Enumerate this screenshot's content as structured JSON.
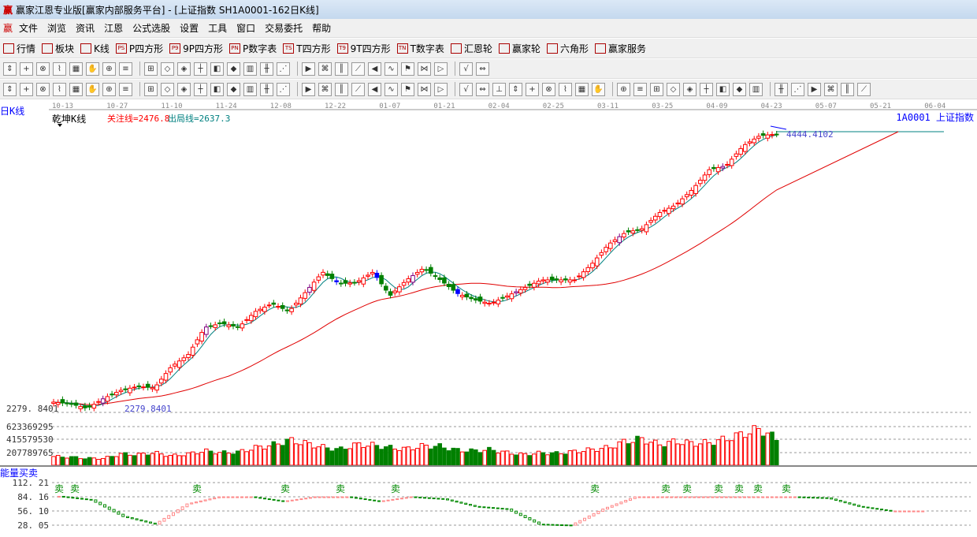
{
  "window": {
    "title": "赢家江恩专业版[赢家内部服务平台] - [上证指数  SH1A0001-162日K线]",
    "logo": "赢"
  },
  "menu": [
    "文件",
    "浏览",
    "资讯",
    "江恩",
    "公式选股",
    "设置",
    "工具",
    "窗口",
    "交易委托",
    "帮助"
  ],
  "toolbar1": [
    {
      "icon": "grid-icon",
      "label": "行情"
    },
    {
      "icon": "blocks-icon",
      "label": "板块"
    },
    {
      "icon": "kline-icon",
      "label": "K线"
    },
    {
      "icon": "PS",
      "label": "P四方形"
    },
    {
      "icon": "P9",
      "label": "9P四方形"
    },
    {
      "icon": "PN",
      "label": "P数字表"
    },
    {
      "icon": "TS",
      "label": "T四方形"
    },
    {
      "icon": "T9",
      "label": "9T四方形"
    },
    {
      "icon": "TN",
      "label": "T数字表"
    },
    {
      "icon": "wheel-icon",
      "label": "汇恩轮"
    },
    {
      "icon": "wheel-icon",
      "label": "赢家轮"
    },
    {
      "icon": "hexagon-icon",
      "label": "六角形"
    },
    {
      "icon": "dollar-icon",
      "label": "赢家服务"
    }
  ],
  "toolbar2_count": 28,
  "toolbar3_count": 50,
  "panel": {
    "period": "日K线",
    "indicator": "乾坤K线",
    "focus_line": "关注线=2476.8",
    "exit_line": "出局线=2637.3",
    "symbol": "1A0001  上证指数",
    "high_label": "4444.4102",
    "low_label": "2279.8401",
    "low_axis": "2279. 8401",
    "volume_axis": [
      "623369295",
      "415579530",
      "207789765"
    ],
    "energy_title": "能量买卖",
    "energy_axis": [
      "112. 21",
      "84. 16",
      "56. 10",
      "28. 05"
    ],
    "sell_label": "卖"
  },
  "chart_data": {
    "type": "candlestick",
    "dates": [
      "10-13",
      "10-27",
      "11-10",
      "11-24",
      "12-08",
      "12-22",
      "01-07",
      "01-21",
      "02-04",
      "02-25",
      "03-11",
      "03-25",
      "04-09",
      "04-23",
      "05-07",
      "05-21",
      "06-04"
    ],
    "candles": 162,
    "close_keypoints": [
      2330,
      2317,
      2280,
      2361,
      2423,
      2454,
      2442,
      2610,
      2703,
      2920,
      2952,
      2920,
      3045,
      3107,
      3045,
      3200,
      3356,
      3263,
      3275,
      3356,
      3169,
      3294,
      3387,
      3294,
      3188,
      3138,
      3107,
      3169,
      3231,
      3294,
      3294,
      3294,
      3418,
      3574,
      3667,
      3698,
      3822,
      3885,
      4009,
      4164,
      4195,
      4351,
      4432,
      4444
    ],
    "high": 4444.4102,
    "low": 2279.8401,
    "volume_keypoints_m": [
      140,
      130,
      110,
      110,
      180,
      170,
      200,
      150,
      180,
      230,
      200,
      210,
      280,
      320,
      400,
      350,
      290,
      250,
      330,
      320,
      280,
      260,
      310,
      300,
      240,
      230,
      250,
      200,
      170,
      200,
      190,
      220,
      250,
      280,
      380,
      420,
      330,
      380,
      350,
      360,
      420,
      500,
      580,
      420
    ],
    "energy_keypoints": [
      85,
      78,
      45,
      30,
      70,
      84,
      84,
      75,
      84,
      84,
      75,
      84,
      80,
      65,
      60,
      30,
      28,
      60,
      84,
      84,
      84,
      84,
      84,
      84,
      82,
      65,
      56,
      56
    ],
    "sell_marks": 13,
    "colors": {
      "up": "#ff0000",
      "down": "#008000",
      "ma_short": "#008080",
      "ma_long": "#e00000",
      "low_mark": "#0000ff",
      "special": "#800080"
    }
  }
}
